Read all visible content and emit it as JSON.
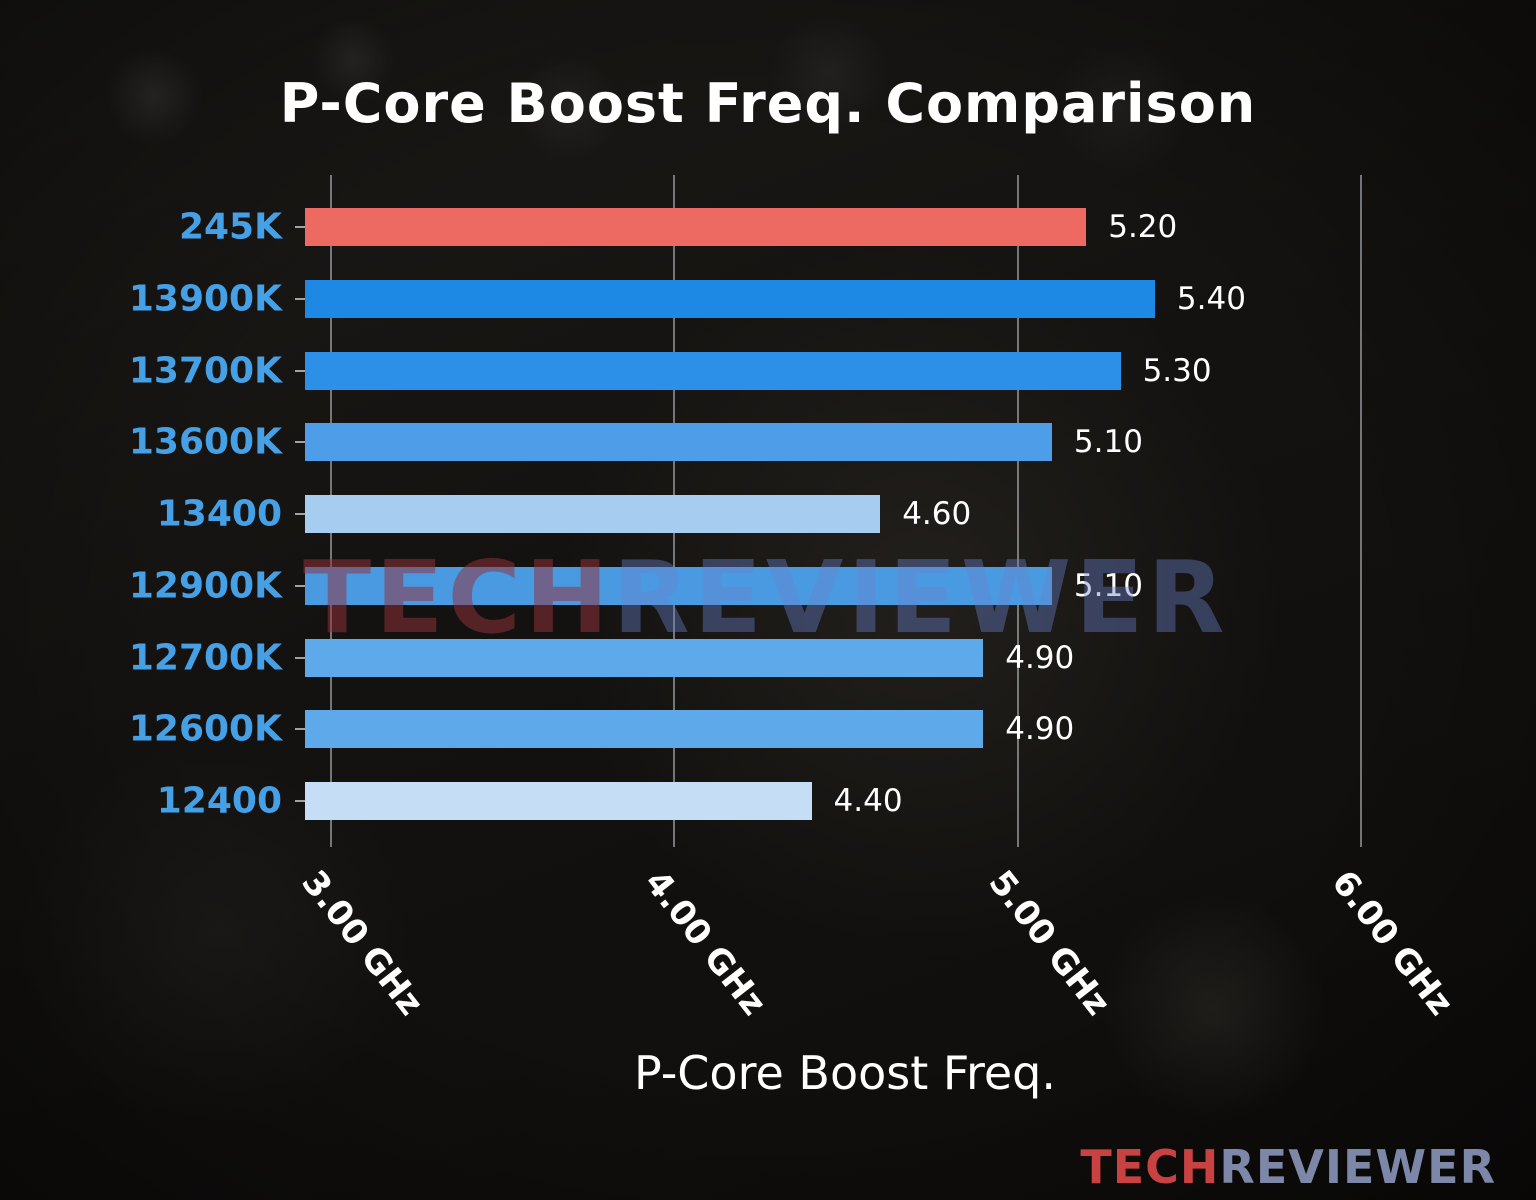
{
  "chart_data": {
    "type": "bar",
    "orientation": "horizontal",
    "title": "P-Core Boost Freq. Comparison",
    "xlabel": "P-Core Boost Freq.",
    "categories": [
      "245K",
      "13900K",
      "13700K",
      "13600K",
      "13400",
      "12900K",
      "12700K",
      "12600K",
      "12400"
    ],
    "values": [
      5.2,
      5.4,
      5.3,
      5.1,
      4.6,
      5.1,
      4.9,
      4.9,
      4.4
    ],
    "value_labels": [
      "5.20",
      "5.40",
      "5.30",
      "5.10",
      "4.60",
      "5.10",
      "4.90",
      "4.90",
      "4.40"
    ],
    "bar_colors": [
      "#ed6a63",
      "#1e88e5",
      "#2d90e8",
      "#4d9de9",
      "#a6cdf0",
      "#4a9ae2",
      "#5ea9ea",
      "#5ea9ea",
      "#c5def5"
    ],
    "highlight_category": "245K",
    "highlight_color": "#ed6a63",
    "category_label_color": "#46a0e6",
    "x_tick_values": [
      3,
      4,
      5,
      6
    ],
    "x_tick_labels": [
      "3.00 GHz",
      "4.00 GHz",
      "5.00 GHz",
      "6.00 GHz"
    ],
    "xlim": [
      2.925,
      6.07
    ],
    "grid": true,
    "legend": false
  },
  "watermark": {
    "center": {
      "tech": "TECH",
      "reviewer": "REVIEWER"
    },
    "footer": {
      "tech": "TECH",
      "reviewer": "REVIEWER"
    }
  }
}
